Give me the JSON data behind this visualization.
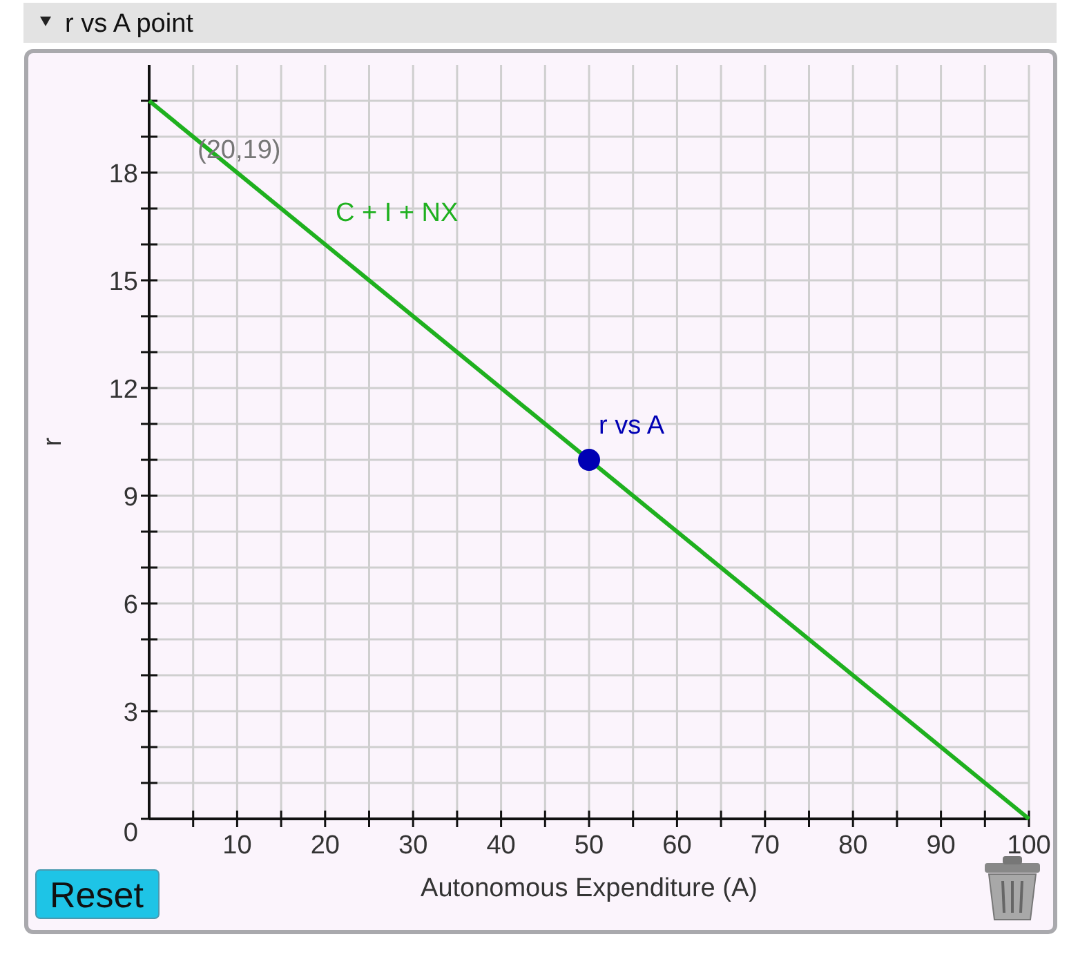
{
  "chart_data": {
    "type": "line",
    "title": "r vs A point",
    "xlabel": "Autonomous Expenditure (A)",
    "ylabel": "r",
    "xlim": [
      0,
      100
    ],
    "ylim": [
      0,
      21
    ],
    "xticks": [
      {
        "value": 5,
        "label": null
      },
      10,
      {
        "value": 15,
        "label": null
      },
      20,
      {
        "value": 25,
        "label": null
      },
      30,
      {
        "value": 35,
        "label": null
      },
      40,
      {
        "value": 45,
        "label": null
      },
      50,
      {
        "value": 55,
        "label": null
      },
      60,
      {
        "value": 65,
        "label": null
      },
      70,
      {
        "value": 75,
        "label": null
      },
      80,
      {
        "value": 85,
        "label": null
      },
      90,
      {
        "value": 95,
        "label": null
      },
      100
    ],
    "yticks": [
      0,
      {
        "value": 1,
        "label": null
      },
      {
        "value": 2,
        "label": null
      },
      3,
      {
        "value": 4,
        "label": null
      },
      {
        "value": 5,
        "label": null
      },
      6,
      {
        "value": 7,
        "label": null
      },
      {
        "value": 8,
        "label": null
      },
      9,
      {
        "value": 10,
        "label": null
      },
      {
        "value": 11,
        "label": null
      },
      12,
      {
        "value": 13,
        "label": null
      },
      {
        "value": 14,
        "label": null
      },
      15,
      {
        "value": 16,
        "label": null
      },
      {
        "value": 17,
        "label": null
      },
      18,
      {
        "value": 19,
        "label": null
      },
      {
        "value": 20,
        "label": null
      }
    ],
    "grid": true,
    "series": [
      {
        "name": "C + I + NX",
        "type": "line",
        "color": "#1fb01f",
        "x": [
          0,
          100
        ],
        "values": [
          20,
          0
        ],
        "marker": "none"
      },
      {
        "name": "r vs A",
        "type": "scatter",
        "color": "#0000b4",
        "x": [
          50
        ],
        "values": [
          10
        ],
        "marker": "circle"
      }
    ],
    "annotations": [
      "(20,19)",
      "Reset"
    ]
  }
}
